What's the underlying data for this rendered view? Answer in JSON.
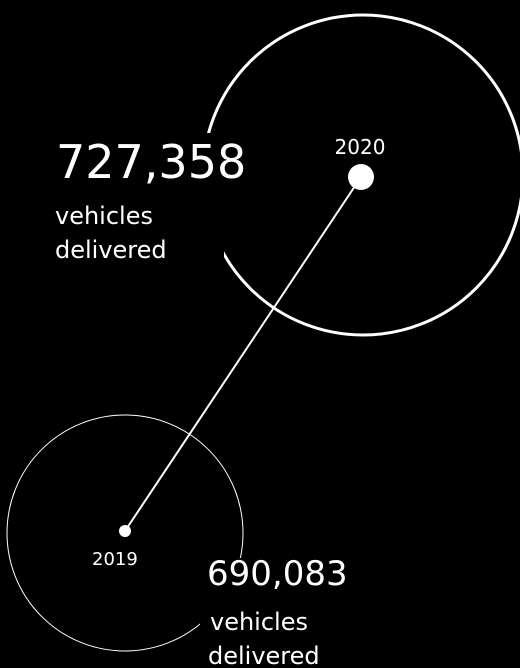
{
  "items": [
    {
      "year": "2020",
      "value": "727,358",
      "label_lines": [
        "vehicles",
        "delivered"
      ]
    },
    {
      "year": "2019",
      "value": "690,083",
      "label_lines": [
        "vehicles",
        "delivered"
      ]
    }
  ]
}
